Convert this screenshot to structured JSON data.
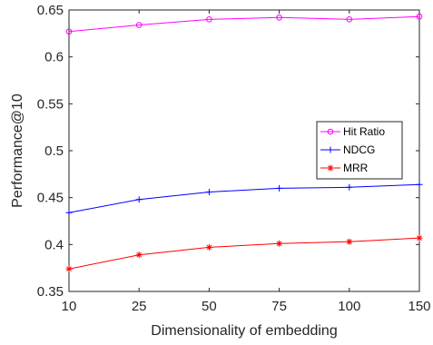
{
  "chart_data": {
    "type": "line",
    "x": [
      "10",
      "25",
      "50",
      "75",
      "100",
      "150"
    ],
    "xlabel": "Dimensionality of embedding",
    "ylabel": "Performance@10",
    "ylim": [
      0.35,
      0.65
    ],
    "yticks": [
      "0.35",
      "0.4",
      "0.45",
      "0.5",
      "0.55",
      "0.6",
      "0.65"
    ],
    "grid": false,
    "legend_position": "right-middle",
    "series": [
      {
        "name": "Hit Ratio",
        "color": "#ff00ff",
        "marker": "circle",
        "values": [
          0.627,
          0.634,
          0.64,
          0.642,
          0.64,
          0.643
        ]
      },
      {
        "name": "NDCG",
        "color": "#0000ff",
        "marker": "plus",
        "values": [
          0.434,
          0.448,
          0.456,
          0.46,
          0.461,
          0.464
        ]
      },
      {
        "name": "MRR",
        "color": "#ff0000",
        "marker": "asterisk",
        "values": [
          0.374,
          0.389,
          0.397,
          0.401,
          0.403,
          0.407
        ]
      }
    ]
  }
}
